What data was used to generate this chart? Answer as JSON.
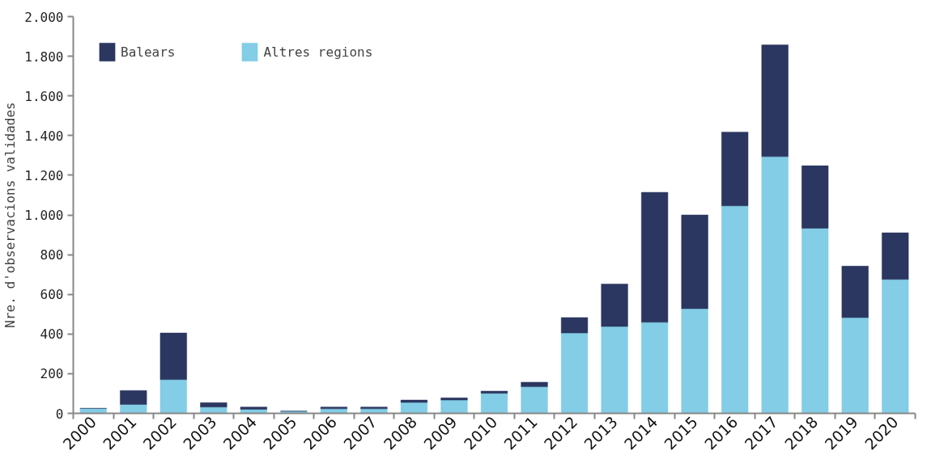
{
  "chart_data": {
    "type": "bar",
    "stacked": true,
    "ylabel": "Nre. d'observacions validades",
    "categories": [
      "2000",
      "2001",
      "2002",
      "2003",
      "2004",
      "2005",
      "2006",
      "2007",
      "2008",
      "2009",
      "2010",
      "2011",
      "2012",
      "2013",
      "2014",
      "2015",
      "2016",
      "2017",
      "2018",
      "2019",
      "2020"
    ],
    "series": [
      {
        "name": "Altres regions",
        "color": "#83cde6",
        "values": [
          25,
          45,
          170,
          32,
          20,
          11,
          23,
          23,
          55,
          67,
          101,
          134,
          405,
          438,
          459,
          528,
          1046,
          1294,
          933,
          483,
          675
        ]
      },
      {
        "name": "Balears",
        "color": "#2b3760",
        "values": [
          0,
          70,
          235,
          22,
          12,
          0,
          9,
          9,
          12,
          11,
          11,
          23,
          78,
          214,
          655,
          472,
          372,
          563,
          315,
          259,
          235
        ]
      }
    ],
    "ylim": [
      0,
      2000
    ],
    "yticks": [
      0,
      200,
      400,
      600,
      800,
      {
        "value": 1000,
        "label": "1.000"
      },
      {
        "value": 1200,
        "label": "1.200"
      },
      {
        "value": 1400,
        "label": "1.400"
      },
      {
        "value": 1600,
        "label": "1.600"
      },
      {
        "value": 1800,
        "label": "1.800"
      },
      {
        "value": 2000,
        "label": "2.000"
      }
    ],
    "grid": false,
    "legend": "top left"
  }
}
